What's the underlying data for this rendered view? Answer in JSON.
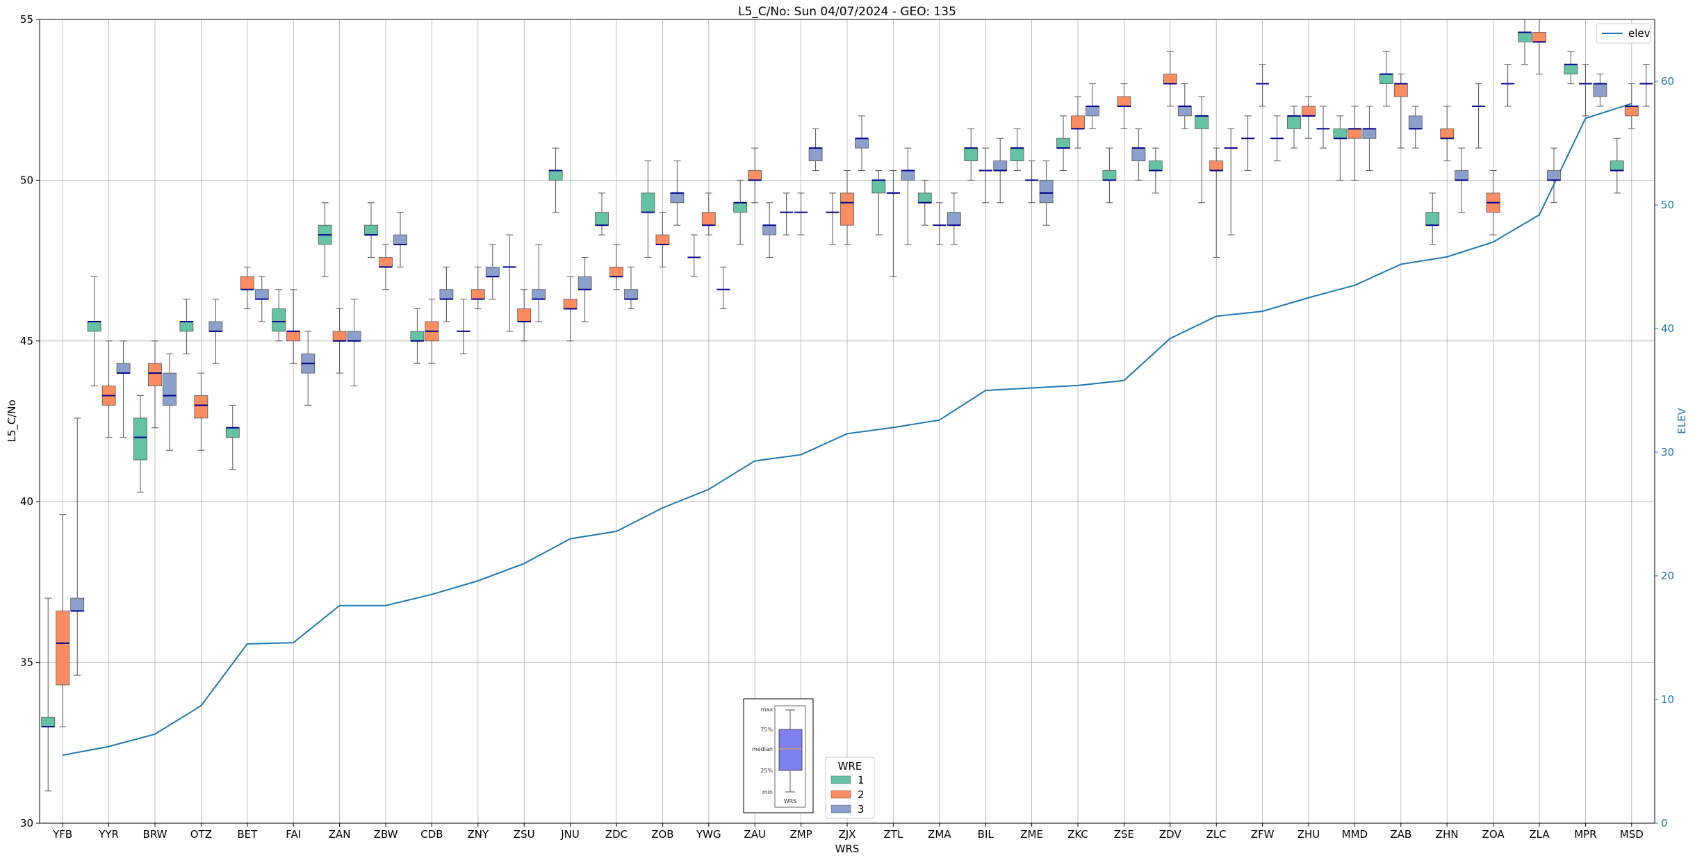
{
  "chart_data": {
    "type": "box",
    "title": "L5_C/No: Sun 04/07/2024 - GEO: 135",
    "xlabel": "WRS",
    "ylabel": "L5_C/No",
    "y2label": "ELEV",
    "ylim": [
      30,
      55
    ],
    "y2lim": [
      0,
      65
    ],
    "yticks": [
      30,
      35,
      40,
      45,
      50,
      55
    ],
    "y2ticks": [
      0,
      10,
      20,
      30,
      40,
      50,
      60
    ],
    "grid": true,
    "categories": [
      "YFB",
      "YYR",
      "BRW",
      "OTZ",
      "BET",
      "FAI",
      "ZAN",
      "ZBW",
      "CDB",
      "ZNY",
      "ZSU",
      "JNU",
      "ZDC",
      "ZOB",
      "YWG",
      "ZAU",
      "ZMP",
      "ZJX",
      "ZTL",
      "ZMA",
      "BIL",
      "ZME",
      "ZKC",
      "ZSE",
      "ZDV",
      "ZLC",
      "ZFW",
      "ZHU",
      "MMD",
      "ZAB",
      "ZHN",
      "ZOA",
      "ZLA",
      "MPR",
      "MSD"
    ],
    "legend": {
      "title": "WRE",
      "entries": [
        "1",
        "2",
        "3"
      ],
      "placement": "lower-center"
    },
    "colors": {
      "1": "#66c2a5",
      "2": "#fc8d62",
      "3": "#8da0cb",
      "median": "#00008b",
      "elev": "#1f77b4"
    },
    "series_box": [
      {
        "cat": "YFB",
        "wre": 1,
        "min": 31,
        "q1": 33,
        "med": 33,
        "q3": 33.3,
        "max": 37
      },
      {
        "cat": "YFB",
        "wre": 2,
        "min": 33,
        "q1": 34.3,
        "med": 35.6,
        "q3": 36.6,
        "max": 39.6
      },
      {
        "cat": "YFB",
        "wre": 3,
        "min": 34.6,
        "q1": 36.6,
        "med": 36.6,
        "q3": 37,
        "max": 42.6
      },
      {
        "cat": "YYR",
        "wre": 1,
        "min": 43.6,
        "q1": 45.3,
        "med": 45.6,
        "q3": 45.6,
        "max": 47
      },
      {
        "cat": "YYR",
        "wre": 2,
        "min": 42,
        "q1": 43,
        "med": 43.3,
        "q3": 43.6,
        "max": 45
      },
      {
        "cat": "YYR",
        "wre": 3,
        "min": 42,
        "q1": 44,
        "med": 44,
        "q3": 44.3,
        "max": 45
      },
      {
        "cat": "BRW",
        "wre": 1,
        "min": 40.3,
        "q1": 41.3,
        "med": 42,
        "q3": 42.6,
        "max": 43.3
      },
      {
        "cat": "BRW",
        "wre": 2,
        "min": 42.3,
        "q1": 43.6,
        "med": 44,
        "q3": 44.3,
        "max": 45
      },
      {
        "cat": "BRW",
        "wre": 3,
        "min": 41.6,
        "q1": 43,
        "med": 43.3,
        "q3": 44,
        "max": 44.6
      },
      {
        "cat": "OTZ",
        "wre": 1,
        "min": 44.6,
        "q1": 45.3,
        "med": 45.6,
        "q3": 45.6,
        "max": 46.3
      },
      {
        "cat": "OTZ",
        "wre": 2,
        "min": 41.6,
        "q1": 42.6,
        "med": 43,
        "q3": 43.3,
        "max": 44
      },
      {
        "cat": "OTZ",
        "wre": 3,
        "min": 44.3,
        "q1": 45.3,
        "med": 45.3,
        "q3": 45.6,
        "max": 46.3
      },
      {
        "cat": "BET",
        "wre": 1,
        "min": 41,
        "q1": 42,
        "med": 42.3,
        "q3": 42.3,
        "max": 43
      },
      {
        "cat": "BET",
        "wre": 2,
        "min": 46,
        "q1": 46.6,
        "med": 46.6,
        "q3": 47,
        "max": 47.3
      },
      {
        "cat": "BET",
        "wre": 3,
        "min": 45.6,
        "q1": 46.3,
        "med": 46.3,
        "q3": 46.6,
        "max": 47
      },
      {
        "cat": "FAI",
        "wre": 1,
        "min": 45,
        "q1": 45.3,
        "med": 45.6,
        "q3": 46,
        "max": 46.6
      },
      {
        "cat": "FAI",
        "wre": 2,
        "min": 44.3,
        "q1": 45,
        "med": 45.3,
        "q3": 45.3,
        "max": 46.6
      },
      {
        "cat": "FAI",
        "wre": 3,
        "min": 43,
        "q1": 44,
        "med": 44.3,
        "q3": 44.6,
        "max": 45.3
      },
      {
        "cat": "ZAN",
        "wre": 1,
        "min": 47,
        "q1": 48,
        "med": 48.3,
        "q3": 48.6,
        "max": 49.3
      },
      {
        "cat": "ZAN",
        "wre": 2,
        "min": 44,
        "q1": 45,
        "med": 45,
        "q3": 45.3,
        "max": 46
      },
      {
        "cat": "ZAN",
        "wre": 3,
        "min": 43.6,
        "q1": 45,
        "med": 45,
        "q3": 45.3,
        "max": 46.3
      },
      {
        "cat": "ZBW",
        "wre": 1,
        "min": 47.6,
        "q1": 48.3,
        "med": 48.3,
        "q3": 48.6,
        "max": 49.3
      },
      {
        "cat": "ZBW",
        "wre": 2,
        "min": 46.6,
        "q1": 47.3,
        "med": 47.3,
        "q3": 47.6,
        "max": 48
      },
      {
        "cat": "ZBW",
        "wre": 3,
        "min": 47.3,
        "q1": 48,
        "med": 48,
        "q3": 48.3,
        "max": 49
      },
      {
        "cat": "CDB",
        "wre": 1,
        "min": 44.3,
        "q1": 45,
        "med": 45,
        "q3": 45.3,
        "max": 46
      },
      {
        "cat": "CDB",
        "wre": 2,
        "min": 44.3,
        "q1": 45,
        "med": 45.3,
        "q3": 45.6,
        "max": 46.3
      },
      {
        "cat": "CDB",
        "wre": 3,
        "min": 45.6,
        "q1": 46.3,
        "med": 46.3,
        "q3": 46.6,
        "max": 47.3
      },
      {
        "cat": "ZNY",
        "wre": 1,
        "min": 44.6,
        "q1": 45.3,
        "med": 45.3,
        "q3": 45.3,
        "max": 46.3
      },
      {
        "cat": "ZNY",
        "wre": 2,
        "min": 46,
        "q1": 46.3,
        "med": 46.3,
        "q3": 46.6,
        "max": 47.3
      },
      {
        "cat": "ZNY",
        "wre": 3,
        "min": 46.3,
        "q1": 47,
        "med": 47,
        "q3": 47.3,
        "max": 48
      },
      {
        "cat": "ZSU",
        "wre": 1,
        "min": 45.3,
        "q1": 47.3,
        "med": 47.3,
        "q3": 47.3,
        "max": 48.3
      },
      {
        "cat": "ZSU",
        "wre": 2,
        "min": 45,
        "q1": 45.6,
        "med": 45.6,
        "q3": 46,
        "max": 46.6
      },
      {
        "cat": "ZSU",
        "wre": 3,
        "min": 45.6,
        "q1": 46.3,
        "med": 46.3,
        "q3": 46.6,
        "max": 48
      },
      {
        "cat": "JNU",
        "wre": 1,
        "min": 49,
        "q1": 50,
        "med": 50.3,
        "q3": 50.3,
        "max": 51
      },
      {
        "cat": "JNU",
        "wre": 2,
        "min": 45,
        "q1": 46,
        "med": 46,
        "q3": 46.3,
        "max": 47
      },
      {
        "cat": "JNU",
        "wre": 3,
        "min": 45.6,
        "q1": 46.6,
        "med": 46.6,
        "q3": 47,
        "max": 47.6
      },
      {
        "cat": "ZDC",
        "wre": 1,
        "min": 48.3,
        "q1": 48.6,
        "med": 48.6,
        "q3": 49,
        "max": 49.6
      },
      {
        "cat": "ZDC",
        "wre": 2,
        "min": 46.6,
        "q1": 47,
        "med": 47,
        "q3": 47.3,
        "max": 48
      },
      {
        "cat": "ZDC",
        "wre": 3,
        "min": 46,
        "q1": 46.3,
        "med": 46.3,
        "q3": 46.6,
        "max": 47.3
      },
      {
        "cat": "ZOB",
        "wre": 1,
        "min": 47.6,
        "q1": 49,
        "med": 49,
        "q3": 49.6,
        "max": 50.6
      },
      {
        "cat": "ZOB",
        "wre": 2,
        "min": 47.3,
        "q1": 48,
        "med": 48,
        "q3": 48.3,
        "max": 49
      },
      {
        "cat": "ZOB",
        "wre": 3,
        "min": 48.6,
        "q1": 49.3,
        "med": 49.6,
        "q3": 49.6,
        "max": 50.6
      },
      {
        "cat": "YWG",
        "wre": 1,
        "min": 47,
        "q1": 47.6,
        "med": 47.6,
        "q3": 47.6,
        "max": 48.3
      },
      {
        "cat": "YWG",
        "wre": 2,
        "min": 48.3,
        "q1": 48.6,
        "med": 48.6,
        "q3": 49,
        "max": 49.6
      },
      {
        "cat": "YWG",
        "wre": 3,
        "min": 46,
        "q1": 46.6,
        "med": 46.6,
        "q3": 46.6,
        "max": 47.3
      },
      {
        "cat": "ZAU",
        "wre": 1,
        "min": 48,
        "q1": 49,
        "med": 49.3,
        "q3": 49.3,
        "max": 50
      },
      {
        "cat": "ZAU",
        "wre": 2,
        "min": 49.3,
        "q1": 50,
        "med": 50,
        "q3": 50.3,
        "max": 51
      },
      {
        "cat": "ZAU",
        "wre": 3,
        "min": 47.6,
        "q1": 48.3,
        "med": 48.6,
        "q3": 48.6,
        "max": 49.3
      },
      {
        "cat": "ZMP",
        "wre": 1,
        "min": 48.3,
        "q1": 49,
        "med": 49,
        "q3": 49,
        "max": 49.6
      },
      {
        "cat": "ZMP",
        "wre": 2,
        "min": 48.3,
        "q1": 49,
        "med": 49,
        "q3": 49,
        "max": 49.6
      },
      {
        "cat": "ZMP",
        "wre": 3,
        "min": 50.3,
        "q1": 50.6,
        "med": 51,
        "q3": 51,
        "max": 51.6
      },
      {
        "cat": "ZJX",
        "wre": 1,
        "min": 48,
        "q1": 49,
        "med": 49,
        "q3": 49,
        "max": 49.6
      },
      {
        "cat": "ZJX",
        "wre": 2,
        "min": 48,
        "q1": 48.6,
        "med": 49.3,
        "q3": 49.6,
        "max": 50.3
      },
      {
        "cat": "ZJX",
        "wre": 3,
        "min": 50.3,
        "q1": 51,
        "med": 51.3,
        "q3": 51.3,
        "max": 52
      },
      {
        "cat": "ZTL",
        "wre": 1,
        "min": 48.3,
        "q1": 49.6,
        "med": 50,
        "q3": 50,
        "max": 50.3
      },
      {
        "cat": "ZTL",
        "wre": 2,
        "min": 47,
        "q1": 49.6,
        "med": 49.6,
        "q3": 49.6,
        "max": 50.3
      },
      {
        "cat": "ZTL",
        "wre": 3,
        "min": 48,
        "q1": 50,
        "med": 50.3,
        "q3": 50.3,
        "max": 51
      },
      {
        "cat": "ZMA",
        "wre": 1,
        "min": 48.6,
        "q1": 49.3,
        "med": 49.3,
        "q3": 49.6,
        "max": 50
      },
      {
        "cat": "ZMA",
        "wre": 2,
        "min": 48,
        "q1": 48.6,
        "med": 48.6,
        "q3": 48.6,
        "max": 49.3
      },
      {
        "cat": "ZMA",
        "wre": 3,
        "min": 48,
        "q1": 48.6,
        "med": 48.6,
        "q3": 49,
        "max": 49.6
      },
      {
        "cat": "BIL",
        "wre": 1,
        "min": 50,
        "q1": 50.6,
        "med": 51,
        "q3": 51,
        "max": 51.6
      },
      {
        "cat": "BIL",
        "wre": 2,
        "min": 49.3,
        "q1": 50.3,
        "med": 50.3,
        "q3": 50.3,
        "max": 51
      },
      {
        "cat": "BIL",
        "wre": 3,
        "min": 49.3,
        "q1": 50.3,
        "med": 50.3,
        "q3": 50.6,
        "max": 51.3
      },
      {
        "cat": "ZME",
        "wre": 1,
        "min": 50.3,
        "q1": 50.6,
        "med": 51,
        "q3": 51,
        "max": 51.6
      },
      {
        "cat": "ZME",
        "wre": 2,
        "min": 49.3,
        "q1": 50,
        "med": 50,
        "q3": 50,
        "max": 50.6
      },
      {
        "cat": "ZME",
        "wre": 3,
        "min": 48.6,
        "q1": 49.3,
        "med": 49.6,
        "q3": 50,
        "max": 50.6
      },
      {
        "cat": "ZKC",
        "wre": 1,
        "min": 50.3,
        "q1": 51,
        "med": 51,
        "q3": 51.3,
        "max": 52
      },
      {
        "cat": "ZKC",
        "wre": 2,
        "min": 51,
        "q1": 51.6,
        "med": 51.6,
        "q3": 52,
        "max": 52.6
      },
      {
        "cat": "ZKC",
        "wre": 3,
        "min": 51.6,
        "q1": 52,
        "med": 52.3,
        "q3": 52.3,
        "max": 53
      },
      {
        "cat": "ZSE",
        "wre": 1,
        "min": 49.3,
        "q1": 50,
        "med": 50,
        "q3": 50.3,
        "max": 51
      },
      {
        "cat": "ZSE",
        "wre": 2,
        "min": 51.6,
        "q1": 52.3,
        "med": 52.3,
        "q3": 52.6,
        "max": 53
      },
      {
        "cat": "ZSE",
        "wre": 3,
        "min": 50,
        "q1": 50.6,
        "med": 51,
        "q3": 51,
        "max": 51.6
      },
      {
        "cat": "ZDV",
        "wre": 1,
        "min": 49.6,
        "q1": 50.3,
        "med": 50.3,
        "q3": 50.6,
        "max": 51
      },
      {
        "cat": "ZDV",
        "wre": 2,
        "min": 52.3,
        "q1": 53,
        "med": 53,
        "q3": 53.3,
        "max": 54
      },
      {
        "cat": "ZDV",
        "wre": 3,
        "min": 51.6,
        "q1": 52,
        "med": 52.3,
        "q3": 52.3,
        "max": 53
      },
      {
        "cat": "ZLC",
        "wre": 1,
        "min": 49.3,
        "q1": 51.6,
        "med": 52,
        "q3": 52,
        "max": 52.6
      },
      {
        "cat": "ZLC",
        "wre": 2,
        "min": 47.6,
        "q1": 50.3,
        "med": 50.3,
        "q3": 50.6,
        "max": 51
      },
      {
        "cat": "ZLC",
        "wre": 3,
        "min": 48.3,
        "q1": 51,
        "med": 51,
        "q3": 51,
        "max": 51.6
      },
      {
        "cat": "ZFW",
        "wre": 1,
        "min": 50.3,
        "q1": 51.3,
        "med": 51.3,
        "q3": 51.3,
        "max": 52
      },
      {
        "cat": "ZFW",
        "wre": 2,
        "min": 52.3,
        "q1": 53,
        "med": 53,
        "q3": 53,
        "max": 53.6
      },
      {
        "cat": "ZFW",
        "wre": 3,
        "min": 50.6,
        "q1": 51.3,
        "med": 51.3,
        "q3": 51.3,
        "max": 52
      },
      {
        "cat": "ZHU",
        "wre": 1,
        "min": 51,
        "q1": 51.6,
        "med": 52,
        "q3": 52,
        "max": 52.3
      },
      {
        "cat": "ZHU",
        "wre": 2,
        "min": 51.3,
        "q1": 52,
        "med": 52,
        "q3": 52.3,
        "max": 52.6
      },
      {
        "cat": "ZHU",
        "wre": 3,
        "min": 51,
        "q1": 51.6,
        "med": 51.6,
        "q3": 51.6,
        "max": 52.3
      },
      {
        "cat": "MMD",
        "wre": 1,
        "min": 50,
        "q1": 51.3,
        "med": 51.3,
        "q3": 51.6,
        "max": 52
      },
      {
        "cat": "MMD",
        "wre": 2,
        "min": 50,
        "q1": 51.3,
        "med": 51.6,
        "q3": 51.6,
        "max": 52.3
      },
      {
        "cat": "MMD",
        "wre": 3,
        "min": 50.3,
        "q1": 51.3,
        "med": 51.6,
        "q3": 51.6,
        "max": 52.3
      },
      {
        "cat": "ZAB",
        "wre": 1,
        "min": 52.3,
        "q1": 53,
        "med": 53.3,
        "q3": 53.3,
        "max": 54
      },
      {
        "cat": "ZAB",
        "wre": 2,
        "min": 51,
        "q1": 52.6,
        "med": 53,
        "q3": 53,
        "max": 53.3
      },
      {
        "cat": "ZAB",
        "wre": 3,
        "min": 51,
        "q1": 51.6,
        "med": 51.6,
        "q3": 52,
        "max": 52.3
      },
      {
        "cat": "ZHN",
        "wre": 1,
        "min": 48,
        "q1": 48.6,
        "med": 48.6,
        "q3": 49,
        "max": 49.6
      },
      {
        "cat": "ZHN",
        "wre": 2,
        "min": 50.6,
        "q1": 51.3,
        "med": 51.3,
        "q3": 51.6,
        "max": 52.3
      },
      {
        "cat": "ZHN",
        "wre": 3,
        "min": 49,
        "q1": 50,
        "med": 50,
        "q3": 50.3,
        "max": 51
      },
      {
        "cat": "ZOA",
        "wre": 1,
        "min": 51,
        "q1": 52.3,
        "med": 52.3,
        "q3": 52.3,
        "max": 53
      },
      {
        "cat": "ZOA",
        "wre": 2,
        "min": 48.3,
        "q1": 49,
        "med": 49.3,
        "q3": 49.6,
        "max": 50.3
      },
      {
        "cat": "ZOA",
        "wre": 3,
        "min": 52.3,
        "q1": 53,
        "med": 53,
        "q3": 53,
        "max": 53.6
      },
      {
        "cat": "ZLA",
        "wre": 1,
        "min": 53.6,
        "q1": 54.3,
        "med": 54.6,
        "q3": 54.6,
        "max": 55
      },
      {
        "cat": "ZLA",
        "wre": 2,
        "min": 53.3,
        "q1": 54.3,
        "med": 54.3,
        "q3": 54.6,
        "max": 55
      },
      {
        "cat": "ZLA",
        "wre": 3,
        "min": 49.3,
        "q1": 50,
        "med": 50,
        "q3": 50.3,
        "max": 51
      },
      {
        "cat": "MPR",
        "wre": 1,
        "min": 53,
        "q1": 53.3,
        "med": 53.6,
        "q3": 53.6,
        "max": 54
      },
      {
        "cat": "MPR",
        "wre": 2,
        "min": 52,
        "q1": 53,
        "med": 53,
        "q3": 53,
        "max": 53.6
      },
      {
        "cat": "MPR",
        "wre": 3,
        "min": 52.3,
        "q1": 52.6,
        "med": 53,
        "q3": 53,
        "max": 53.3
      },
      {
        "cat": "MSD",
        "wre": 1,
        "min": 49.6,
        "q1": 50.3,
        "med": 50.3,
        "q3": 50.6,
        "max": 51.3
      },
      {
        "cat": "MSD",
        "wre": 2,
        "min": 51.6,
        "q1": 52,
        "med": 52.3,
        "q3": 52.3,
        "max": 53
      },
      {
        "cat": "MSD",
        "wre": 3,
        "min": 52.3,
        "q1": 53,
        "med": 53,
        "q3": 53,
        "max": 53.6
      }
    ],
    "elev_line": {
      "name": "elev",
      "legend_placement": "top-right",
      "values": [
        5.5,
        6.2,
        7.2,
        9.5,
        14.5,
        14.6,
        17.6,
        17.6,
        18.5,
        19.6,
        21.0,
        23.0,
        23.6,
        25.5,
        27.0,
        29.3,
        29.8,
        31.5,
        32.0,
        32.6,
        35.0,
        35.2,
        35.4,
        35.8,
        39.2,
        41.0,
        41.4,
        42.5,
        43.5,
        45.2,
        45.8,
        47.0,
        49.2,
        57.0,
        58.2
      ]
    },
    "key_inset": {
      "labels": [
        "max",
        "75%",
        "median",
        "25%",
        "min"
      ],
      "xlabel": "WRS"
    }
  }
}
